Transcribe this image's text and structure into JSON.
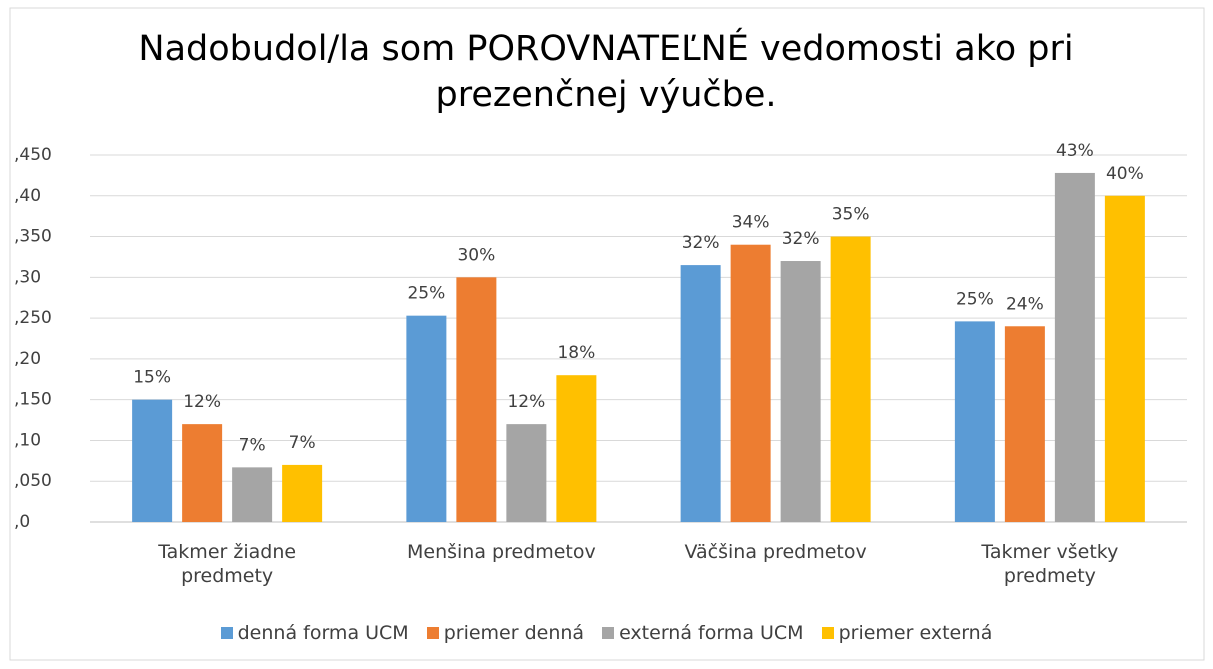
{
  "chart_data": {
    "type": "bar",
    "title": "Nadobudol/la som POROVNATEĽNÉ vedomosti  ako pri prezenčnej výučbe.",
    "categories": [
      "Takmer žiadne predmety",
      "Menšina predmetov",
      "Väčšina predmetov",
      "Takmer všetky predmety"
    ],
    "series": [
      {
        "name": "denná forma UCM",
        "color": "#5b9bd5",
        "values": [
          0.15,
          0.253,
          0.315,
          0.246
        ],
        "value_labels": [
          "15%",
          "25%",
          "32%",
          "25%"
        ]
      },
      {
        "name": "priemer denná",
        "color": "#ed7d31",
        "values": [
          0.12,
          0.3,
          0.34,
          0.24
        ],
        "value_labels": [
          "12%",
          "30%",
          "34%",
          "24%"
        ]
      },
      {
        "name": "externá forma UCM",
        "color": "#a5a5a5",
        "values": [
          0.067,
          0.12,
          0.32,
          0.428
        ],
        "value_labels": [
          "7%",
          "12%",
          "32%",
          "43%"
        ]
      },
      {
        "name": "priemer externá",
        "color": "#ffc000",
        "values": [
          0.07,
          0.18,
          0.35,
          0.4
        ],
        "value_labels": [
          "7%",
          "18%",
          "35%",
          "40%"
        ]
      }
    ],
    "ylim": [
      0,
      0.45
    ],
    "yticks": [
      {
        "value": 0,
        "label": ",0"
      },
      {
        "value": 0.05,
        "label": ",050"
      },
      {
        "value": 0.1,
        "label": ",10"
      },
      {
        "value": 0.15,
        "label": ",150"
      },
      {
        "value": 0.2,
        "label": ",20"
      },
      {
        "value": 0.25,
        "label": ",250"
      },
      {
        "value": 0.3,
        "label": ",30"
      },
      {
        "value": 0.35,
        "label": ",350"
      },
      {
        "value": 0.4,
        "label": ",40"
      },
      {
        "value": 0.45,
        "label": ",450"
      }
    ],
    "grid": true,
    "legend": "bottom"
  }
}
